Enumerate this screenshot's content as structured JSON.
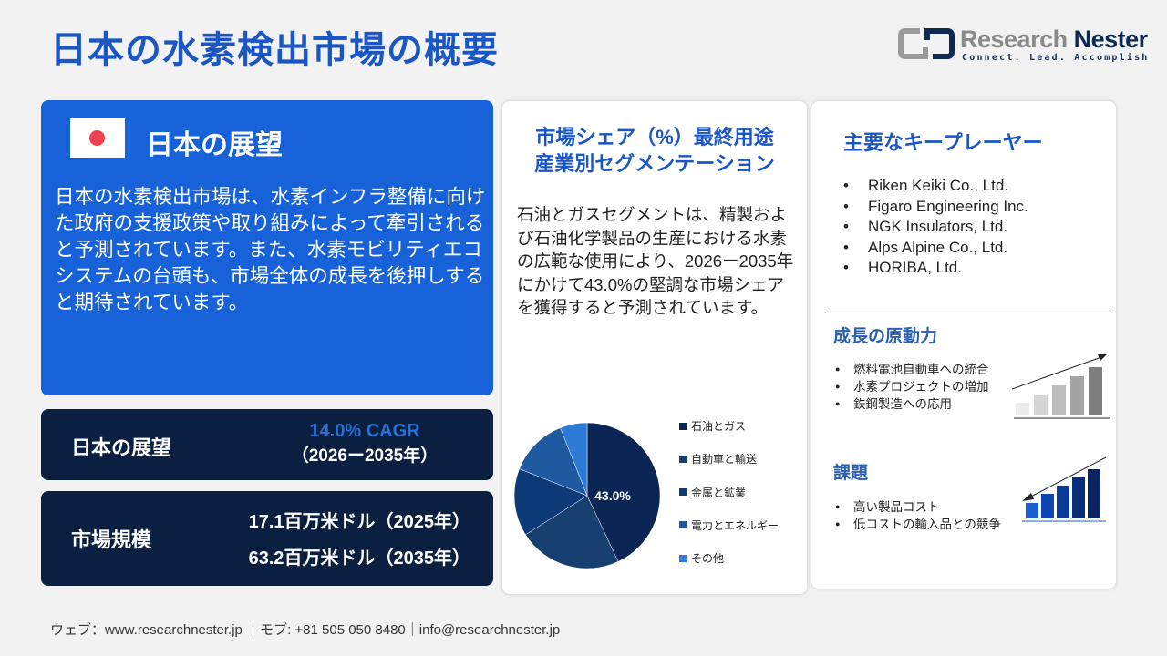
{
  "header": {
    "title": "日本の水素検出市場の概要"
  },
  "logo": {
    "name_light": "Research",
    "name_bold": "Nester",
    "tagline": "Connect. Lead. Accomplish"
  },
  "outlook_card": {
    "heading": "日本の展望",
    "flag": "japan-flag-icon",
    "body": "日本の水素検出市場は、水素インフラ整備に向けた政府の支援政策や取り組みによって牽引されると予測されています。また、水素モビリティエコシステムの台頭も、市場全体の成長を後押しすると期待されています。"
  },
  "cagr_card": {
    "label": "日本の展望",
    "cagr": "14.0% CAGR",
    "period": "（2026ー2035年）"
  },
  "size_card": {
    "label": "市場規模",
    "value_2025": "17.1百万米ドル（2025年）",
    "value_2035": "63.2百万米ドル（2035年）"
  },
  "segment": {
    "title_line1": "市場シェア（%）最終用途",
    "title_line2": "産業別セグメンテーション",
    "body": "石油とガスセグメントは、精製および石油化学製品の生産における水素の広範な使用により、2026ー2035年にかけて43.0%の堅調な市場シェアを獲得すると予測されています。"
  },
  "chart_data": {
    "type": "pie",
    "categories": [
      "石油とガス",
      "自動車と輸送",
      "金属と鉱業",
      "電力とエネルギー",
      "その他"
    ],
    "values": [
      43.0,
      23,
      15,
      13,
      6
    ],
    "data_labels": [
      "43.0%"
    ],
    "colors": [
      "#0b2555",
      "#173f70",
      "#0f3a78",
      "#1f5aa0",
      "#2d7bd6"
    ],
    "legend": "right"
  },
  "players": {
    "title": "主要なキープレーヤー",
    "items": [
      "Riken Keiki Co., Ltd.",
      "Figaro Engineering Inc.",
      "NGK Insulators, Ltd.",
      "Alps Alpine Co., Ltd.",
      "HORIBA, Ltd."
    ]
  },
  "drivers": {
    "title": "成長の原動力",
    "items": [
      "燃料電池自動車への統合",
      "水素プロジェクトの増加",
      "鉄鋼製造への応用"
    ]
  },
  "challenges": {
    "title": "課題",
    "items": [
      "高い製品コスト",
      "低コストの輸入品との競争"
    ]
  },
  "footer": {
    "text": "ウェブ：www.researchnester.jp ｜モブ: +81 505 050 8480｜info@researchnester.jp"
  }
}
